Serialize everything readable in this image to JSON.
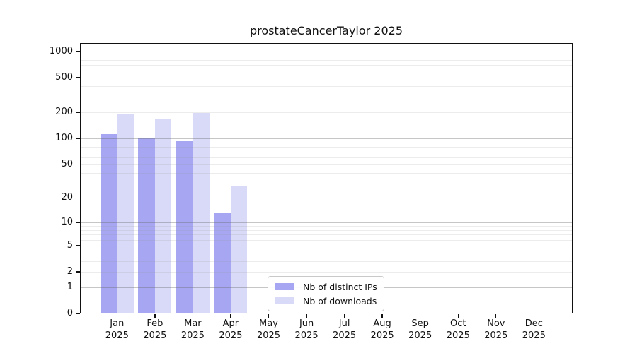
{
  "title": "prostateCancerTaylor 2025",
  "chart_data": {
    "type": "bar",
    "title": "prostateCancerTaylor 2025",
    "categories": [
      "Jan",
      "Feb",
      "Mar",
      "Apr",
      "May",
      "Jun",
      "Jul",
      "Aug",
      "Sep",
      "Oct",
      "Nov",
      "Dec"
    ],
    "year": "2025",
    "series": [
      {
        "name": "Nb of distinct IPs",
        "color": "#a6a6f2",
        "values": [
          112,
          100,
          93,
          13,
          0,
          0,
          0,
          0,
          0,
          0,
          0,
          0
        ]
      },
      {
        "name": "Nb of downloads",
        "color": "#d9d9f8",
        "values": [
          190,
          170,
          196,
          28,
          0,
          0,
          0,
          0,
          0,
          0,
          0,
          0
        ]
      }
    ],
    "xlabel": "",
    "ylabel": "",
    "yscale": "log1p",
    "yticks": [
      0,
      1,
      2,
      5,
      10,
      20,
      50,
      100,
      200,
      500,
      1000
    ],
    "ylim": [
      0,
      1250
    ],
    "grid": "horizontal log major+minor",
    "legend_position": "lower-center"
  },
  "colors": {
    "distinct_ips": "#a6a6f2",
    "downloads": "#d9d9f8",
    "axis": "#111111",
    "grid_major": "#c3c3c3",
    "grid_minor": "#e7e7e7",
    "background": "#ffffff"
  }
}
